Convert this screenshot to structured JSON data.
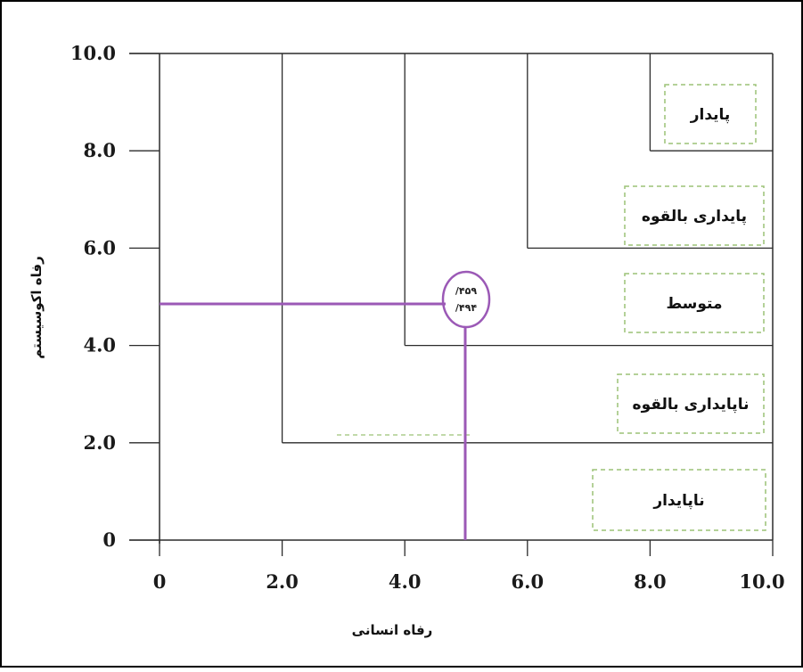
{
  "chart_data": {
    "type": "scatter",
    "title": "",
    "xlabel": "رفاه انسانی",
    "ylabel": "رفاه اکوسیستم",
    "xlim": [
      0,
      10
    ],
    "ylim": [
      0,
      10
    ],
    "x_ticks": [
      "0",
      "2.0",
      "4.0",
      "6.0",
      "8.0",
      "10.0"
    ],
    "y_ticks": [
      "0",
      "2.0",
      "4.0",
      "6.0",
      "8.0",
      "10.0"
    ],
    "zones": [
      {
        "label": "ناپایدار",
        "x_min": 0,
        "y_min": 0
      },
      {
        "label": "ناپایداری بالقوه",
        "x_min": 2,
        "y_min": 2
      },
      {
        "label": "متوسط",
        "x_min": 4,
        "y_min": 4
      },
      {
        "label": "پایداری بالقوه",
        "x_min": 6,
        "y_min": 6
      },
      {
        "label": "پایدار",
        "x_min": 8,
        "y_min": 8
      }
    ],
    "point": {
      "x": 4.94,
      "y": 4.59,
      "label_y": "/۴۵۹",
      "label_x": "/۴۹۴"
    },
    "grid": false,
    "colors": {
      "marker": "#9b59b6",
      "zone_box": "#9cc276",
      "lines": "#2b2b2b"
    }
  }
}
